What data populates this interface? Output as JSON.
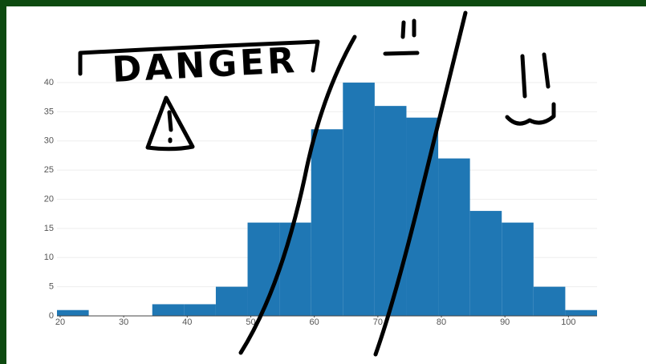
{
  "chart_data": {
    "type": "histogram",
    "bins": [
      19.5,
      24.5,
      29.5,
      34.5,
      39.5,
      44.5,
      49.5,
      54.5,
      59.5,
      64.5,
      69.5,
      74.5,
      79.5,
      84.5,
      89.5,
      94.5,
      99.5,
      104.5
    ],
    "values": [
      1,
      0,
      0,
      2,
      2,
      5,
      16,
      16,
      32,
      40,
      36,
      34,
      27,
      18,
      16,
      5,
      1
    ],
    "color": "#1f77b4",
    "xlim": [
      19.5,
      104.5
    ],
    "xticks": [
      20,
      30,
      40,
      50,
      60,
      70,
      80,
      90,
      100
    ],
    "ylim": [
      0,
      42
    ],
    "yticks": [
      0,
      5,
      10,
      15,
      20,
      25,
      30,
      35,
      40
    ],
    "grid": true,
    "annotation": "DANGER"
  }
}
